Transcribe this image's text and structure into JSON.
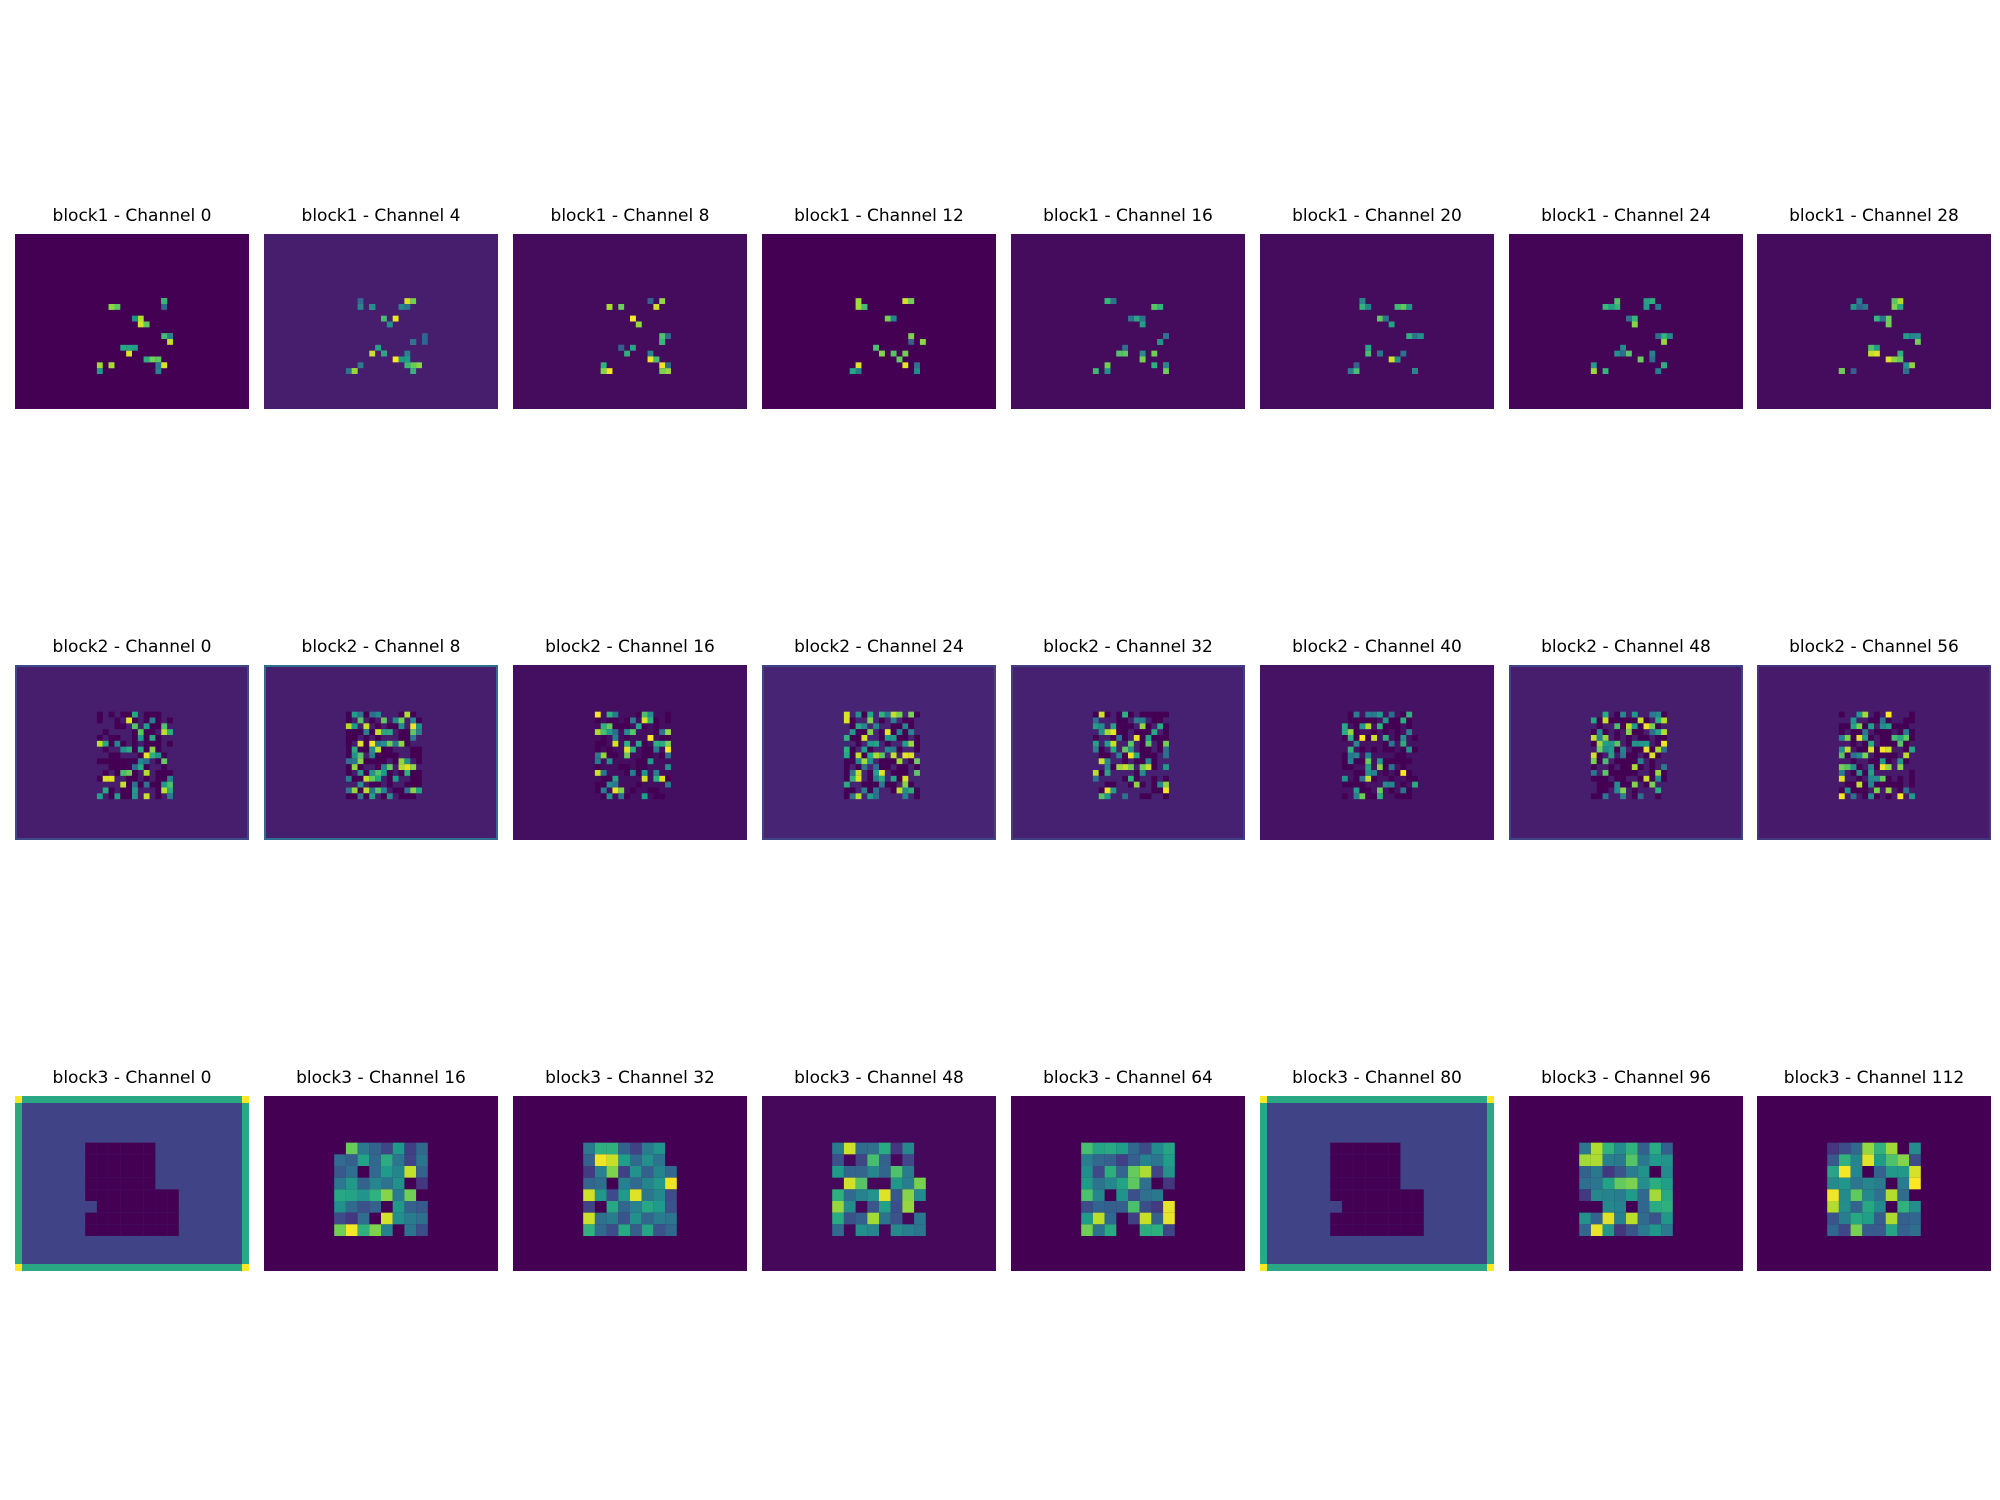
{
  "chart_data": {
    "type": "heatmap",
    "colormap": "viridis",
    "colormap_stops": [
      "#440154",
      "#482878",
      "#3e4a89",
      "#31688e",
      "#26828e",
      "#1f9e89",
      "#35b779",
      "#6ece58",
      "#b5de2b",
      "#fde725"
    ],
    "rows": [
      {
        "block": "block1",
        "grid": [
          30,
          40
        ],
        "panels": [
          {
            "title": "block1 - Channel 0",
            "background": 0.0
          },
          {
            "title": "block1 - Channel 4",
            "background": 0.08
          },
          {
            "title": "block1 - Channel 8",
            "background": 0.03
          },
          {
            "title": "block1 - Channel 12",
            "background": 0.0
          },
          {
            "title": "block1 - Channel 16",
            "background": 0.03
          },
          {
            "title": "block1 - Channel 20",
            "background": 0.03
          },
          {
            "title": "block1 - Channel 24",
            "background": 0.01
          },
          {
            "title": "block1 - Channel 28",
            "background": 0.03
          }
        ]
      },
      {
        "block": "block2",
        "grid": [
          30,
          40
        ],
        "panels": [
          {
            "title": "block2 - Channel 0",
            "background": 0.08,
            "border": 0.22
          },
          {
            "title": "block2 - Channel 8",
            "background": 0.08,
            "border": 0.35
          },
          {
            "title": "block2 - Channel 16",
            "background": 0.04,
            "border": 0.04
          },
          {
            "title": "block2 - Channel 24",
            "background": 0.1,
            "border": 0.2
          },
          {
            "title": "block2 - Channel 32",
            "background": 0.09,
            "border": 0.18
          },
          {
            "title": "block2 - Channel 40",
            "background": 0.05,
            "border": 0.05
          },
          {
            "title": "block2 - Channel 48",
            "background": 0.08,
            "border": 0.2
          },
          {
            "title": "block2 - Channel 56",
            "background": 0.07,
            "border": 0.15
          }
        ]
      },
      {
        "block": "block3",
        "grid": [
          15,
          20
        ],
        "panels": [
          {
            "title": "block3 - Channel 0",
            "background": 0.2,
            "border": 0.6,
            "corner": 1.0
          },
          {
            "title": "block3 - Channel 16",
            "background": 0.0
          },
          {
            "title": "block3 - Channel 32",
            "background": 0.0
          },
          {
            "title": "block3 - Channel 48",
            "background": 0.02
          },
          {
            "title": "block3 - Channel 64",
            "background": 0.0
          },
          {
            "title": "block3 - Channel 80",
            "background": 0.2,
            "border": 0.6,
            "corner": 1.0
          },
          {
            "title": "block3 - Channel 96",
            "background": 0.0
          },
          {
            "title": "block3 - Channel 112",
            "background": 0.0
          }
        ]
      }
    ]
  }
}
